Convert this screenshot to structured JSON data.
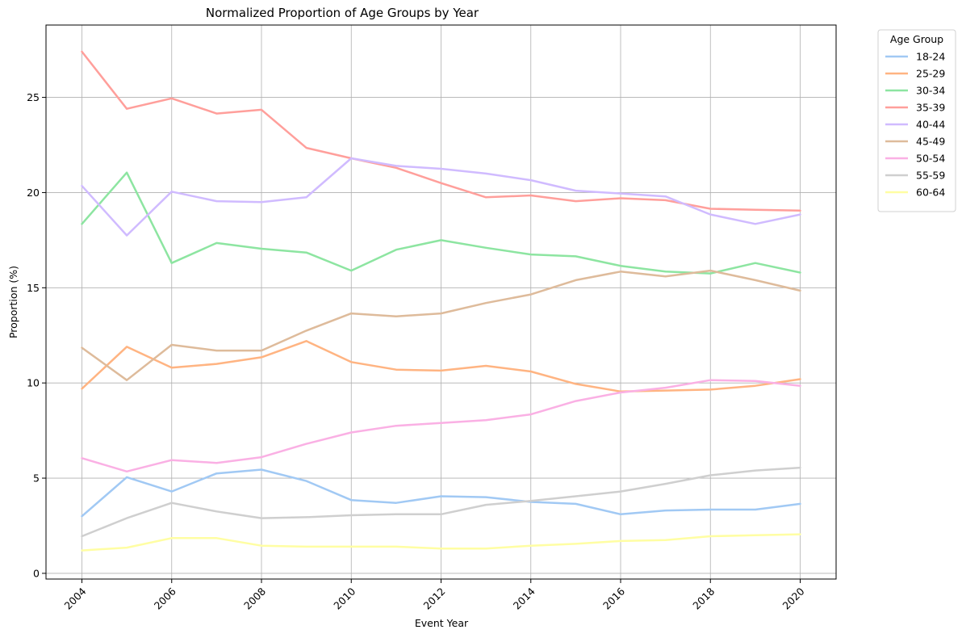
{
  "chart_data": {
    "type": "line",
    "title": "Normalized Proportion of Age Groups by Year",
    "xlabel": "Event Year",
    "ylabel": "Proportion (%)",
    "xlim": [
      2003.2,
      2020.8
    ],
    "ylim": [
      -0.3,
      28.8
    ],
    "x_ticks": [
      2004,
      2006,
      2008,
      2010,
      2012,
      2014,
      2016,
      2018,
      2020
    ],
    "y_ticks": [
      0,
      5,
      10,
      15,
      20,
      25
    ],
    "grid": true,
    "legend": {
      "title": "Age Group",
      "placement": "outside-top-right"
    },
    "x": [
      2004,
      2005,
      2006,
      2007,
      2008,
      2009,
      2010,
      2011,
      2012,
      2013,
      2014,
      2015,
      2016,
      2017,
      2018,
      2019,
      2020
    ],
    "series": [
      {
        "name": "18-24",
        "color": "#a1c9f4",
        "values": [
          3.0,
          5.05,
          4.3,
          5.25,
          5.45,
          4.85,
          3.85,
          3.7,
          4.05,
          4.0,
          3.75,
          3.65,
          3.1,
          3.3,
          3.35,
          3.35,
          3.65
        ]
      },
      {
        "name": "25-29",
        "color": "#ffb482",
        "values": [
          9.7,
          11.9,
          10.8,
          11.0,
          11.35,
          12.2,
          11.1,
          10.7,
          10.65,
          10.9,
          10.6,
          9.95,
          9.55,
          9.6,
          9.65,
          9.85,
          10.2
        ]
      },
      {
        "name": "30-34",
        "color": "#8de5a1",
        "values": [
          18.35,
          21.05,
          16.3,
          17.35,
          17.05,
          16.85,
          15.9,
          17.0,
          17.5,
          17.1,
          16.75,
          16.65,
          16.15,
          15.85,
          15.75,
          16.3,
          15.8
        ]
      },
      {
        "name": "35-39",
        "color": "#ff9f9b",
        "values": [
          27.4,
          24.4,
          24.95,
          24.15,
          24.35,
          22.35,
          21.8,
          21.3,
          20.5,
          19.75,
          19.85,
          19.55,
          19.7,
          19.6,
          19.15,
          19.1,
          19.05
        ]
      },
      {
        "name": "40-44",
        "color": "#d0bbff",
        "values": [
          20.35,
          17.75,
          20.05,
          19.55,
          19.5,
          19.75,
          21.8,
          21.4,
          21.25,
          21.0,
          20.65,
          20.1,
          19.95,
          19.8,
          18.85,
          18.35,
          18.85
        ]
      },
      {
        "name": "45-49",
        "color": "#debb9b",
        "values": [
          11.85,
          10.15,
          12.0,
          11.7,
          11.7,
          12.75,
          13.65,
          13.5,
          13.65,
          14.2,
          14.65,
          15.4,
          15.85,
          15.6,
          15.9,
          15.4,
          14.85
        ]
      },
      {
        "name": "50-54",
        "color": "#fab0e4",
        "values": [
          6.05,
          5.35,
          5.95,
          5.8,
          6.1,
          6.8,
          7.4,
          7.75,
          7.9,
          8.05,
          8.35,
          9.05,
          9.5,
          9.75,
          10.15,
          10.1,
          9.85
        ]
      },
      {
        "name": "55-59",
        "color": "#cfcfcf",
        "values": [
          1.95,
          2.9,
          3.7,
          3.25,
          2.9,
          2.95,
          3.05,
          3.1,
          3.1,
          3.6,
          3.8,
          4.05,
          4.3,
          4.7,
          5.15,
          5.4,
          5.55
        ]
      },
      {
        "name": "60-64",
        "color": "#fffea3",
        "values": [
          1.2,
          1.35,
          1.85,
          1.85,
          1.45,
          1.4,
          1.4,
          1.4,
          1.3,
          1.3,
          1.45,
          1.55,
          1.7,
          1.75,
          1.95,
          2.0,
          2.05
        ]
      }
    ]
  }
}
